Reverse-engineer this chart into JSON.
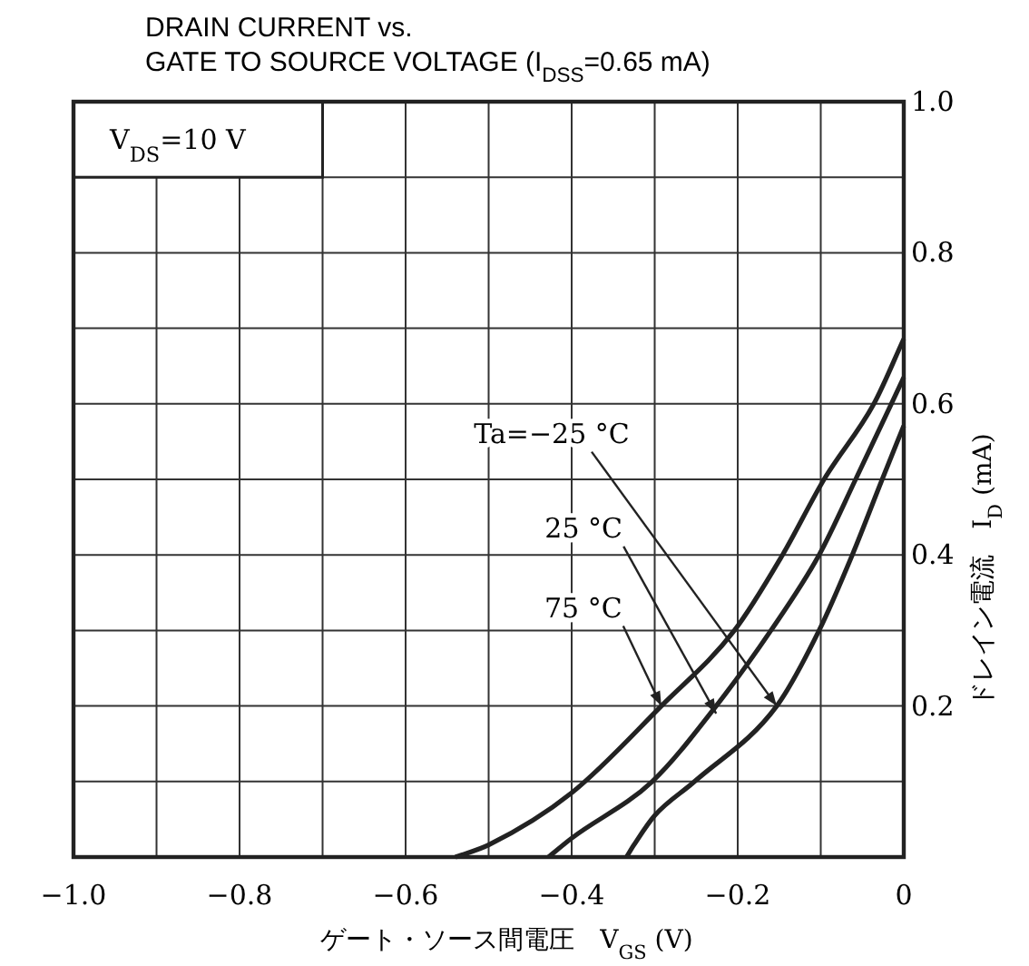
{
  "chart_data": {
    "type": "line",
    "title": "DRAIN CURRENT vs.",
    "subtitle": "GATE TO SOURCE VOLTAGE (I$_{DSS}$=0.65 mA)",
    "xlabel": "ゲート・ソース間電圧　V$_{GS}$ (V)",
    "ylabel": "ドレイン電流　I$_{D}$ (mA)",
    "xlim": [
      -1.0,
      0
    ],
    "ylim": [
      0,
      1.0
    ],
    "xticks": [
      {
        "value": -1.0,
        "label": "−1.0"
      },
      {
        "value": -0.9,
        "label": null
      },
      {
        "value": -0.8,
        "label": "−0.8"
      },
      {
        "value": -0.7,
        "label": null
      },
      {
        "value": -0.6,
        "label": "−0.6"
      },
      {
        "value": -0.5,
        "label": null
      },
      {
        "value": -0.4,
        "label": "−0.4"
      },
      {
        "value": -0.3,
        "label": null
      },
      {
        "value": -0.2,
        "label": "−0.2"
      },
      {
        "value": -0.1,
        "label": null
      },
      {
        "value": 0,
        "label": "0"
      }
    ],
    "yticks": [
      {
        "value": 0,
        "label": null
      },
      {
        "value": 0.1,
        "label": null
      },
      {
        "value": 0.2,
        "label": "0.2"
      },
      {
        "value": 0.3,
        "label": null
      },
      {
        "value": 0.4,
        "label": "0.4"
      },
      {
        "value": 0.5,
        "label": null
      },
      {
        "value": 0.6,
        "label": "0.6"
      },
      {
        "value": 0.7,
        "label": null
      },
      {
        "value": 0.8,
        "label": "0.8"
      },
      {
        "value": 0.9,
        "label": null
      },
      {
        "value": 1.0,
        "label": "1.0"
      }
    ],
    "grid": true,
    "marker": "none",
    "line_style": "solid",
    "series": [
      {
        "color": "#222222",
        "x": [
          -0.54,
          -0.5,
          -0.4,
          -0.292,
          -0.204,
          -0.146,
          -0.096,
          -0.036,
          0
        ],
        "values": [
          0,
          0.016,
          0.085,
          0.2,
          0.3,
          0.4,
          0.5,
          0.6,
          0.686
        ]
      },
      {
        "color": "#222222",
        "x": [
          -0.428,
          -0.4,
          -0.303,
          -0.226,
          -0.16,
          -0.102,
          -0.058,
          -0.015,
          0
        ],
        "values": [
          0,
          0.025,
          0.1,
          0.2,
          0.3,
          0.4,
          0.5,
          0.6,
          0.635
        ]
      },
      {
        "color": "#222222",
        "x": [
          -0.334,
          -0.325,
          -0.3,
          -0.252,
          -0.153,
          -0.102,
          -0.062,
          -0.026,
          0
        ],
        "values": [
          0,
          0.016,
          0.055,
          0.1,
          0.2,
          0.3,
          0.4,
          0.5,
          0.571
        ]
      }
    ],
    "annotations": [
      "V$_{DS}$=10 V",
      {
        "text": "Ta=−25 °C",
        "x": -0.153,
        "y": 0.2
      },
      {
        "text": "25 °C",
        "x": -0.226,
        "y": 0.19
      },
      {
        "text": "75 °C",
        "x": -0.292,
        "y": 0.2
      }
    ]
  }
}
